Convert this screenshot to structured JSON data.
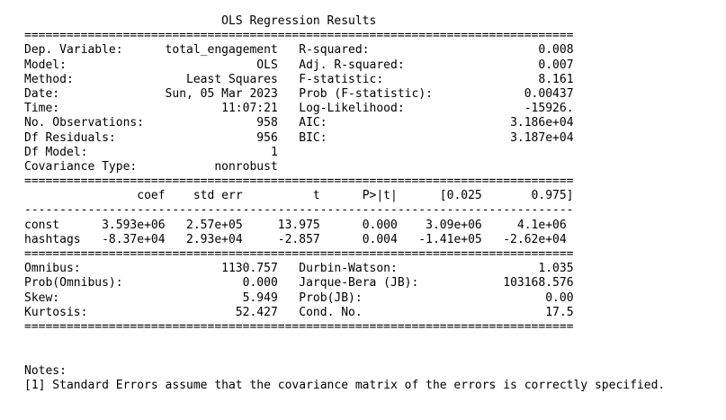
{
  "title": "OLS Regression Results",
  "rule_double": "==============================================================================",
  "rule_single": "------------------------------------------------------------------------------",
  "summary": {
    "left": [
      {
        "label": "Dep. Variable:",
        "value": "total_engagement"
      },
      {
        "label": "Model:",
        "value": "OLS"
      },
      {
        "label": "Method:",
        "value": "Least Squares"
      },
      {
        "label": "Date:",
        "value": "Sun, 05 Mar 2023"
      },
      {
        "label": "Time:",
        "value": "11:07:21"
      },
      {
        "label": "No. Observations:",
        "value": "958"
      },
      {
        "label": "Df Residuals:",
        "value": "956"
      },
      {
        "label": "Df Model:",
        "value": "1"
      },
      {
        "label": "Covariance Type:",
        "value": "nonrobust"
      }
    ],
    "right": [
      {
        "label": "R-squared:",
        "value": "0.008"
      },
      {
        "label": "Adj. R-squared:",
        "value": "0.007"
      },
      {
        "label": "F-statistic:",
        "value": "8.161"
      },
      {
        "label": "Prob (F-statistic):",
        "value": "0.00437"
      },
      {
        "label": "Log-Likelihood:",
        "value": "-15926."
      },
      {
        "label": "AIC:",
        "value": "3.186e+04"
      },
      {
        "label": "BIC:",
        "value": "3.187e+04"
      },
      {
        "label": "",
        "value": ""
      },
      {
        "label": "",
        "value": ""
      }
    ]
  },
  "coef_table": {
    "headers": [
      "coef",
      "std err",
      "t",
      "P>|t|",
      "[0.025",
      "0.975]"
    ],
    "rows": [
      {
        "name": "const",
        "values": [
          "3.593e+06",
          "2.57e+05",
          "13.975",
          "0.000",
          "3.09e+06",
          "4.1e+06"
        ]
      },
      {
        "name": "hashtags",
        "values": [
          "-8.37e+04",
          "2.93e+04",
          "-2.857",
          "0.004",
          "-1.41e+05",
          "-2.62e+04"
        ]
      }
    ]
  },
  "diagnostics": {
    "left": [
      {
        "label": "Omnibus:",
        "value": "1130.757"
      },
      {
        "label": "Prob(Omnibus):",
        "value": "0.000"
      },
      {
        "label": "Skew:",
        "value": "5.949"
      },
      {
        "label": "Kurtosis:",
        "value": "52.427"
      }
    ],
    "right": [
      {
        "label": "Durbin-Watson:",
        "value": "1.035"
      },
      {
        "label": "Jarque-Bera (JB):",
        "value": "103168.576"
      },
      {
        "label": "Prob(JB):",
        "value": "0.00"
      },
      {
        "label": "Cond. No.",
        "value": "17.5"
      }
    ]
  },
  "notes": {
    "heading": "Notes:",
    "items": [
      "[1] Standard Errors assume that the covariance matrix of the errors is correctly specified."
    ]
  }
}
